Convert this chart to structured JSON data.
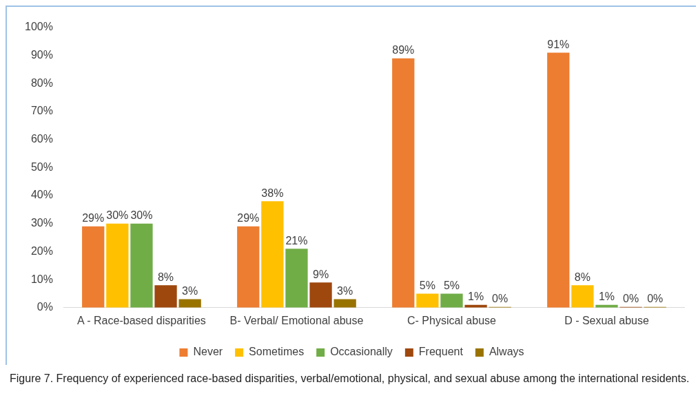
{
  "chart_data": {
    "type": "bar",
    "categories": [
      "A - Race-based disparities",
      "B- Verbal/ Emotional abuse",
      "C- Physical abuse",
      "D - Sexual abuse"
    ],
    "series": [
      {
        "name": "Never",
        "color": "#ed7d31",
        "values": [
          29,
          29,
          89,
          91
        ],
        "value_labels": [
          "29%",
          "29%",
          "89%",
          "91%"
        ]
      },
      {
        "name": "Sometimes",
        "color": "#ffc000",
        "values": [
          30,
          38,
          5,
          8
        ],
        "value_labels": [
          "30%",
          "38%",
          "5%",
          "8%"
        ]
      },
      {
        "name": "Occasionally",
        "color": "#70ad47",
        "values": [
          30,
          21,
          5,
          1
        ],
        "value_labels": [
          "30%",
          "21%",
          "5%",
          "1%"
        ]
      },
      {
        "name": "Frequent",
        "color": "#9e480e",
        "values": [
          8,
          9,
          1,
          0
        ],
        "value_labels": [
          "8%",
          "9%",
          "1%",
          "0%"
        ]
      },
      {
        "name": "Always",
        "color": "#997300",
        "values": [
          3,
          3,
          0,
          0
        ],
        "value_labels": [
          "3%",
          "3%",
          "0%",
          "0%"
        ]
      }
    ],
    "ylim": [
      0,
      100
    ],
    "yticks": [
      {
        "value": 0,
        "label": "0%"
      },
      {
        "value": 10,
        "label": "10%"
      },
      {
        "value": 20,
        "label": "20%"
      },
      {
        "value": 30,
        "label": "30%"
      },
      {
        "value": 40,
        "label": "40%"
      },
      {
        "value": 50,
        "label": "50%"
      },
      {
        "value": 60,
        "label": "60%"
      },
      {
        "value": 70,
        "label": "70%"
      },
      {
        "value": 80,
        "label": "80%"
      },
      {
        "value": 90,
        "label": "90%"
      },
      {
        "value": 100,
        "label": "100%"
      }
    ],
    "grid": false,
    "legend": "bottom",
    "annotations": [
      "Figure 7.  Frequency of experienced race-based disparities, verbal/emotional, physical, and sexual abuse among the international residents."
    ]
  }
}
